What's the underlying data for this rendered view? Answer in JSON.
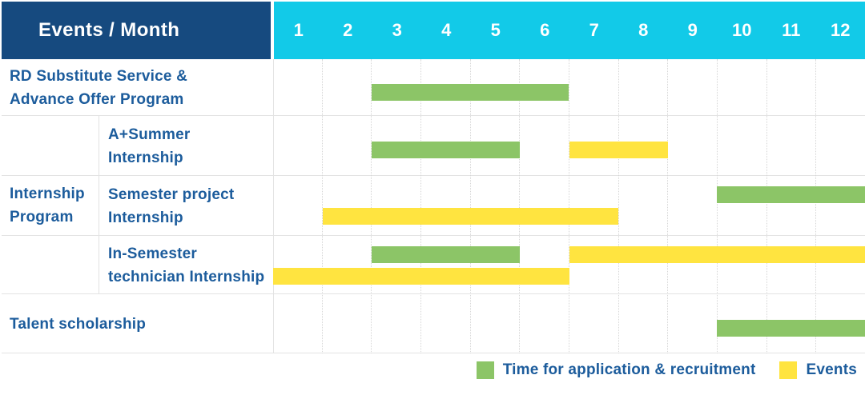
{
  "palette": {
    "header_navy": "#164A7F",
    "months_cyan": "#12CAE8",
    "application_green": "#8CC567",
    "events_yellow": "#FFE440",
    "label_blue": "#1C5C9C"
  },
  "header": {
    "label": "Events / Month",
    "months": [
      "1",
      "2",
      "3",
      "4",
      "5",
      "6",
      "7",
      "8",
      "9",
      "10",
      "11",
      "12"
    ]
  },
  "group": {
    "label": "Internship Program",
    "label_lines": [
      "Internship",
      "Program"
    ]
  },
  "rows": [
    {
      "label": "RD Substitute Service & Advance Offer Program",
      "label_lines": [
        "RD Substitute Service &",
        "Advance Offer Program"
      ],
      "lines": 1,
      "bars": [
        {
          "kind": "application",
          "start": 3,
          "end": 6,
          "line": 0
        }
      ]
    },
    {
      "label": "A+Summer Internship",
      "label_lines": [
        "A+Summer",
        "Internship"
      ],
      "lines": 1,
      "bars": [
        {
          "kind": "application",
          "start": 3,
          "end": 5,
          "line": 0
        },
        {
          "kind": "event",
          "start": 7,
          "end": 8,
          "line": 0
        }
      ]
    },
    {
      "label": "Semester project Internship",
      "label_lines": [
        "Semester project",
        "Internship"
      ],
      "lines": 2,
      "bars": [
        {
          "kind": "application",
          "start": 10,
          "end": 12,
          "line": 0
        },
        {
          "kind": "event",
          "start": 2,
          "end": 7,
          "line": 1
        }
      ]
    },
    {
      "label": "In-Semester technician Internship",
      "label_lines": [
        "In-Semester",
        "technician Internship"
      ],
      "lines": 2,
      "bars": [
        {
          "kind": "application",
          "start": 3,
          "end": 5,
          "line": 0
        },
        {
          "kind": "event",
          "start": 7,
          "end": 12,
          "line": 0
        },
        {
          "kind": "event",
          "start": 1,
          "end": 6,
          "line": 1
        }
      ]
    },
    {
      "label": "Talent scholarship",
      "label_lines": [
        "Talent scholarship"
      ],
      "lines": 1,
      "bars": [
        {
          "kind": "application",
          "start": 10,
          "end": 12,
          "line": 0
        }
      ]
    }
  ],
  "legend": {
    "application_label": "Time for application & recruitment",
    "events_label": "Events"
  },
  "chart_data": {
    "type": "table",
    "subtype": "gantt-schedule",
    "title": "Events / Month",
    "x_axis": {
      "label": "Month",
      "ticks": [
        1,
        2,
        3,
        4,
        5,
        6,
        7,
        8,
        9,
        10,
        11,
        12
      ],
      "range": [
        1,
        12
      ]
    },
    "legend": [
      {
        "name": "Time for application & recruitment",
        "color": "#8CC567"
      },
      {
        "name": "Events",
        "color": "#FFE440"
      }
    ],
    "grid": true,
    "legend_position": "bottom-right",
    "tasks": [
      {
        "event": "RD Substitute Service & Advance Offer Program",
        "group": null,
        "application_recruitment_month_spans": [
          [
            3,
            6
          ]
        ],
        "event_month_spans": []
      },
      {
        "event": "A+Summer Internship",
        "group": "Internship Program",
        "application_recruitment_month_spans": [
          [
            3,
            5
          ]
        ],
        "event_month_spans": [
          [
            7,
            8
          ]
        ]
      },
      {
        "event": "Semester project Internship",
        "group": "Internship Program",
        "application_recruitment_month_spans": [
          [
            10,
            12
          ]
        ],
        "event_month_spans": [
          [
            2,
            7
          ]
        ]
      },
      {
        "event": "In-Semester technician Internship",
        "group": "Internship Program",
        "application_recruitment_month_spans": [
          [
            3,
            5
          ]
        ],
        "event_month_spans": [
          [
            1,
            6
          ],
          [
            7,
            12
          ]
        ]
      },
      {
        "event": "Talent scholarship",
        "group": null,
        "application_recruitment_month_spans": [
          [
            10,
            12
          ]
        ],
        "event_month_spans": []
      }
    ]
  }
}
